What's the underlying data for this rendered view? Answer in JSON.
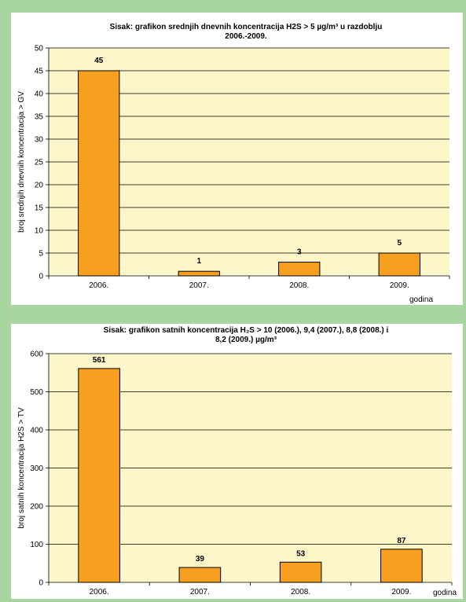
{
  "colors": {
    "page_background": "#a8d5a0",
    "plot_background": "#fdf6c8",
    "bar_fill": "#f7a020",
    "bar_stroke": "#000000"
  },
  "chart_data": [
    {
      "type": "bar",
      "title_line1": "Sisak: grafikon srednjih dnevnih koncentracija H2S > 5 µg/m³ u  razdoblju",
      "title_line2": "2006.-2009.",
      "xlabel": "godina",
      "ylabel": "broj srednjih dnevnih koncentracija > GV",
      "categories": [
        "2006.",
        "2007.",
        "2008.",
        "2009."
      ],
      "values": [
        45,
        1,
        3,
        5
      ],
      "data_labels": [
        "45",
        "1",
        "3",
        "5"
      ],
      "ylim": [
        0,
        50
      ],
      "yticks": [
        0,
        5,
        10,
        15,
        20,
        25,
        30,
        35,
        40,
        45,
        50
      ],
      "grid": true,
      "legend": "none"
    },
    {
      "type": "bar",
      "title_line1": "Sisak: grafikon satnih koncentracija H₂S > 10 (2006.), 9,4 (2007.), 8,8 (2008.) i",
      "title_line2": "8,2 (2009.) µg/m³",
      "xlabel": "godina",
      "ylabel": "broj satnih koncentracija H2S > TV",
      "categories": [
        "2006.",
        "2007.",
        "2008.",
        "2009."
      ],
      "values": [
        561,
        39,
        53,
        87
      ],
      "data_labels": [
        "561",
        "39",
        "53",
        "87"
      ],
      "ylim": [
        0,
        600
      ],
      "yticks": [
        0,
        100,
        200,
        300,
        400,
        500,
        600
      ],
      "grid": true,
      "legend": "none"
    }
  ]
}
